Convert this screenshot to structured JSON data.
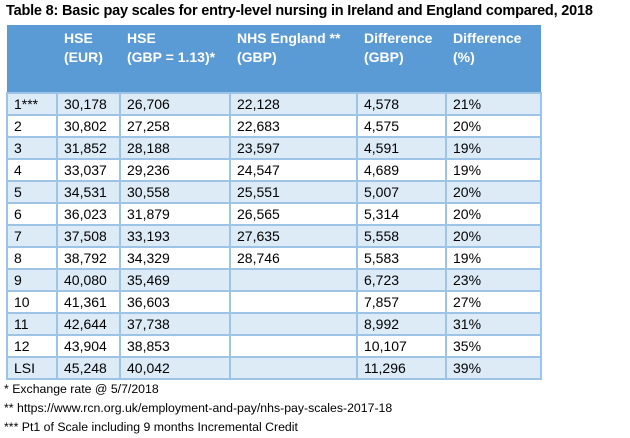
{
  "title": "Table 8: Basic pay scales for entry-level nursing in Ireland and England compared, 2018",
  "columns": [
    {
      "line1": "",
      "line2": ""
    },
    {
      "line1": "HSE",
      "line2": "(EUR)"
    },
    {
      "line1": "HSE",
      "line2": "(GBP = 1.13)*"
    },
    {
      "line1": "NHS England **",
      "line2": "(GBP)"
    },
    {
      "line1": "Difference",
      "line2": "(GBP)"
    },
    {
      "line1": "Difference",
      "line2": "(%)"
    }
  ],
  "rows": [
    [
      "1***",
      "30,178",
      "26,706",
      "22,128",
      "4,578",
      "21%"
    ],
    [
      "2",
      "30,802",
      "27,258",
      "22,683",
      "4,575",
      "20%"
    ],
    [
      "3",
      "31,852",
      "28,188",
      "23,597",
      "4,591",
      "19%"
    ],
    [
      "4",
      "33,037",
      "29,236",
      "24,547",
      "4,689",
      "19%"
    ],
    [
      "5",
      "34,531",
      "30,558",
      "25,551",
      "5,007",
      "20%"
    ],
    [
      "6",
      "36,023",
      "31,879",
      "26,565",
      "5,314",
      "20%"
    ],
    [
      "7",
      "37,508",
      "33,193",
      "27,635",
      "5,558",
      "20%"
    ],
    [
      "8",
      "38,792",
      "34,329",
      "28,746",
      "5,583",
      "19%"
    ],
    [
      "9",
      "40,080",
      "35,469",
      "",
      "6,723",
      "23%"
    ],
    [
      "10",
      "41,361",
      "36,603",
      "",
      "7,857",
      "27%"
    ],
    [
      "11",
      "42,644",
      "37,738",
      "",
      "8,992",
      "31%"
    ],
    [
      "12",
      "43,904",
      "38,853",
      "",
      "10,107",
      "35%"
    ],
    [
      "LSI",
      "45,248",
      "40,042",
      "",
      "11,296",
      "39%"
    ]
  ],
  "footnotes": [
    "* Exchange rate @ 5/7/2018",
    "** https://www.rcn.org.uk/employment-and-pay/nhs-pay-scales-2017-18",
    "*** Pt1 of Scale including 9 months Incremental Credit"
  ],
  "colors": {
    "header_bg": "#5b9bd5",
    "band_bg": "#ddebf7",
    "border": "#9dc3e6"
  }
}
